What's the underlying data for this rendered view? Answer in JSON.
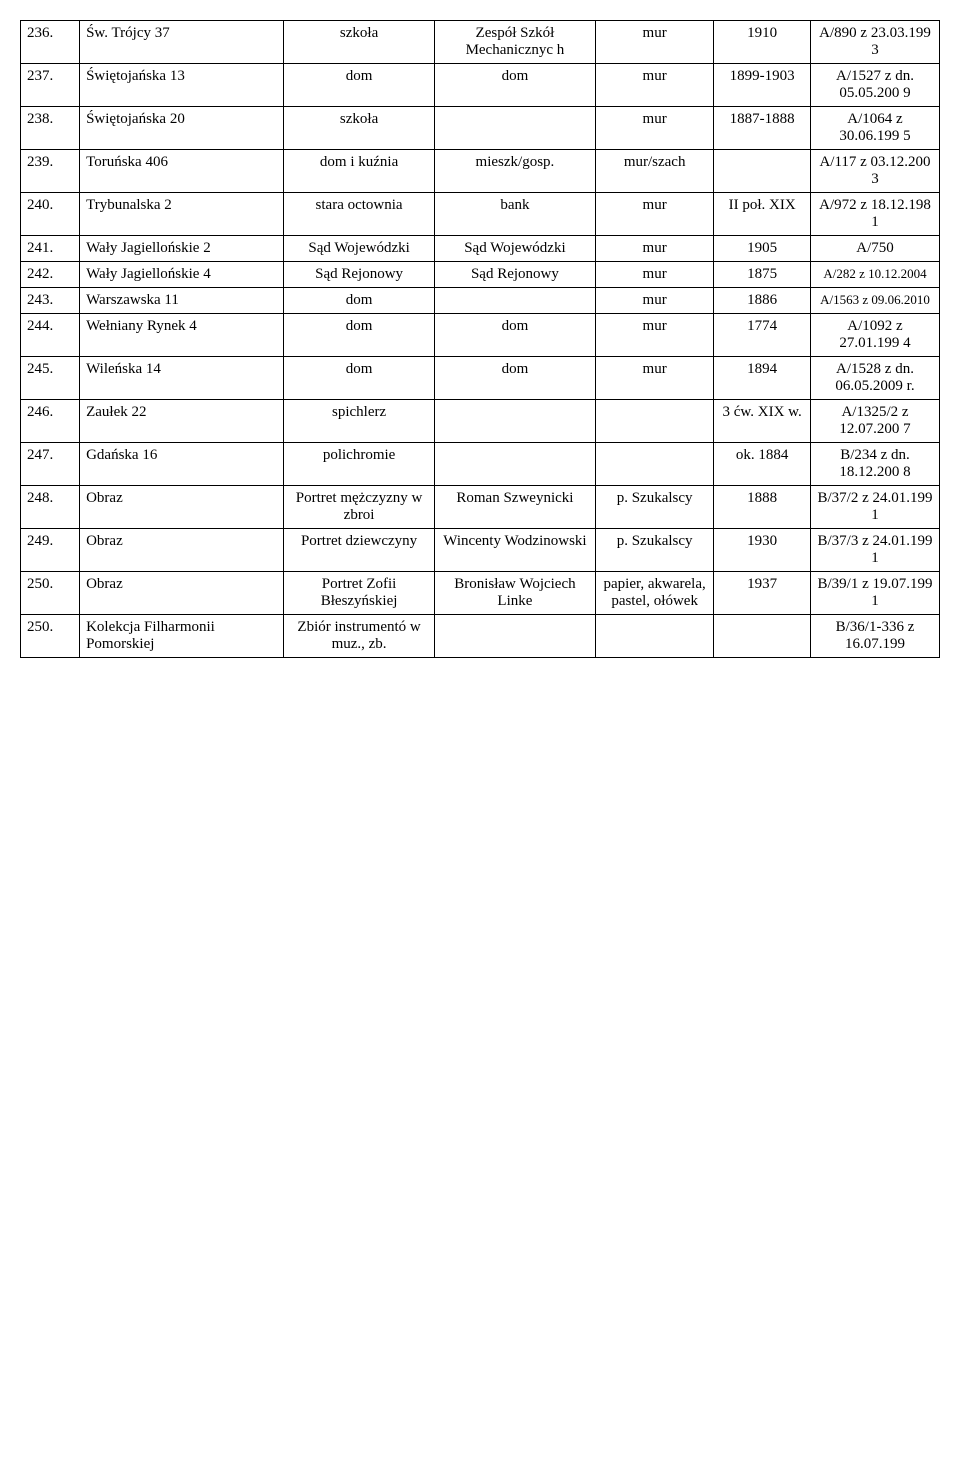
{
  "rows": [
    {
      "n": "236.",
      "c1": "Św. Trójcy 37",
      "c2": "szkoła",
      "c3": "Zespół Szkół Mechanicznyc h",
      "c4": "mur",
      "c5": "1910",
      "c6": "A/890 z 23.03.199 3"
    },
    {
      "n": "237.",
      "c1": "Świętojańska  13",
      "c2": "dom",
      "c3": "dom",
      "c4": "mur",
      "c5": "1899-1903",
      "c6": "A/1527 z dn. 05.05.200 9"
    },
    {
      "n": "238.",
      "c1": "Świętojańska 20",
      "c2": "szkoła",
      "c3": "",
      "c4": "mur",
      "c5": "1887-1888",
      "c6": "A/1064 z 30.06.199 5"
    },
    {
      "n": "239.",
      "c1": "Toruńska 406",
      "c2": "dom i kuźnia",
      "c3": "mieszk/gosp.",
      "c4": "mur/szach",
      "c5": "",
      "c6": "A/117 z 03.12.200 3"
    },
    {
      "n": "240.",
      "c1": "Trybunalska 2",
      "c2": "stara octownia",
      "c3": "bank",
      "c4": "mur",
      "c5": "II poł. XIX",
      "c6": "A/972 z 18.12.198 1"
    },
    {
      "n": "241.",
      "c1": "Wały Jagiellońskie 2",
      "c2": "Sąd Wojewódzki",
      "c3": "Sąd Wojewódzki",
      "c4": "mur",
      "c5": "1905",
      "c6": "A/750"
    },
    {
      "n": "242.",
      "c1": "Wały Jagiellońskie 4",
      "c2": "Sąd Rejonowy",
      "c3": "Sąd Rejonowy",
      "c4": "mur",
      "c5": "1875",
      "c6": "A/282 z 10.12.2004",
      "small6": true
    },
    {
      "n": "243.",
      "c1": "Warszawska 11",
      "c2": "dom",
      "c3": "",
      "c4": "mur",
      "c5": "1886",
      "c6": "A/1563 z 09.06.2010",
      "small6": true
    },
    {
      "n": "244.",
      "c1": "Wełniany Rynek 4",
      "c2": "dom",
      "c3": "dom",
      "c4": "mur",
      "c5": "1774",
      "c6": "A/1092 z 27.01.199 4"
    },
    {
      "n": "245.",
      "c1": "Wileńska 14",
      "c2": "dom",
      "c3": "dom",
      "c4": "mur",
      "c5": "1894",
      "c6": "A/1528 z dn. 06.05.2009 r."
    },
    {
      "n": "246.",
      "c1": "Zaułek 22",
      "c2": "spichlerz",
      "c3": "",
      "c4": "",
      "c5": "3 ćw. XIX w.",
      "c6": "A/1325/2 z 12.07.200 7"
    },
    {
      "n": "247.",
      "c1": "Gdańska 16",
      "c2": "polichromie",
      "c3": "",
      "c4": "",
      "c5": "ok. 1884",
      "c6": "B/234 z dn. 18.12.200 8"
    },
    {
      "n": "248.",
      "c1": "Obraz",
      "c2": "Portret mężczyzny w zbroi",
      "c3": "Roman Szweynicki",
      "c4": "p. Szukalscy",
      "c5": "1888",
      "c6": "B/37/2 z 24.01.199 1"
    },
    {
      "n": "249.",
      "c1": "Obraz",
      "c2": "Portret dziewczyny",
      "c3": "Wincenty Wodzinowski",
      "c4": "p. Szukalscy",
      "c5": "1930",
      "c6": "B/37/3 z 24.01.199 1"
    },
    {
      "n": "250.",
      "c1": "Obraz",
      "c2": "Portret Zofii Błeszyńskiej",
      "c3": "Bronisław Wojciech Linke",
      "c4": "papier, akwarela, pastel, ołówek",
      "c5": "1937",
      "c6": "B/39/1 z 19.07.199 1"
    },
    {
      "n": "250.",
      "c1": "Kolekcja Filharmonii Pomorskiej",
      "c2": "Zbiór instrumentó w muz., zb.",
      "c3": "",
      "c4": "",
      "c5": "",
      "c6": "B/36/1-336 z 16.07.199"
    }
  ],
  "style": {
    "font_family": "Times New Roman",
    "font_size_pt": 12,
    "small_font_size_pt": 11,
    "border_color": "#000000",
    "background_color": "#ffffff",
    "text_color": "#000000"
  }
}
